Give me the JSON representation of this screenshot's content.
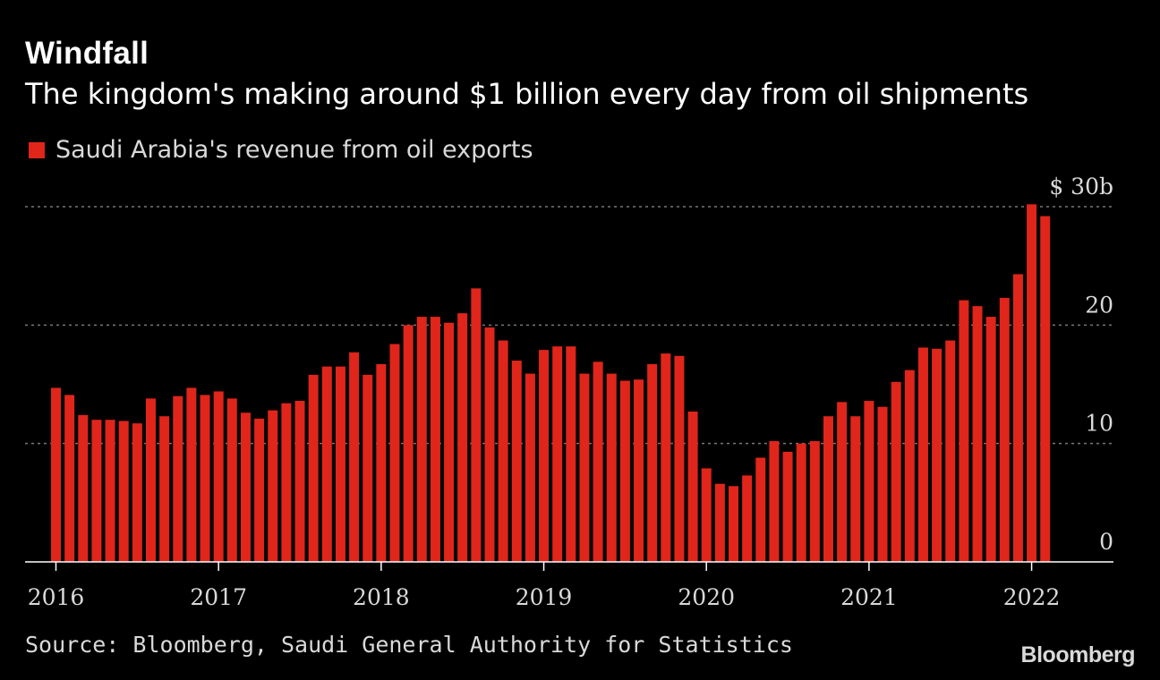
{
  "header": {
    "title": "Windfall",
    "subtitle": "The kingdom's making around $1 billion every day from oil shipments"
  },
  "legend": {
    "label": "Saudi Arabia's revenue from oil exports"
  },
  "footer": {
    "source": "Source: Bloomberg, Saudi General Authority for Statistics",
    "logo": "Bloomberg"
  },
  "colors": {
    "bar": "#e0251b",
    "background": "#000000",
    "grid": "#777777",
    "text": "#d9d9d9"
  },
  "chart_data": {
    "type": "bar",
    "title": "Windfall",
    "subtitle": "The kingdom's making around $1 billion every day from oil shipments",
    "series": [
      {
        "name": "Saudi Arabia's revenue from oil exports",
        "start": "2016-01",
        "values": [
          14.7,
          14.1,
          12.4,
          12.0,
          12.0,
          11.9,
          11.7,
          13.8,
          12.3,
          14.0,
          14.7,
          14.1,
          14.4,
          13.8,
          12.6,
          12.1,
          12.8,
          13.4,
          13.6,
          15.8,
          16.5,
          16.5,
          17.7,
          15.8,
          16.7,
          18.4,
          20.0,
          20.7,
          20.7,
          20.2,
          21.0,
          23.1,
          19.8,
          18.7,
          17.0,
          15.9,
          17.9,
          18.2,
          18.2,
          15.9,
          16.9,
          15.9,
          15.3,
          15.4,
          16.7,
          17.6,
          17.4,
          12.7,
          7.9,
          6.6,
          6.4,
          7.3,
          8.8,
          10.2,
          9.3,
          10.0,
          10.2,
          12.3,
          13.5,
          12.3,
          13.6,
          13.1,
          15.2,
          16.2,
          18.1,
          18.0,
          18.7,
          22.1,
          21.6,
          20.7,
          22.3,
          24.3,
          30.2,
          29.2
        ]
      }
    ],
    "x_ticks": [
      "2016",
      "2017",
      "2018",
      "2019",
      "2020",
      "2021",
      "2022"
    ],
    "y_ticks": [
      {
        "value": 0,
        "label": "0"
      },
      {
        "value": 10,
        "label": "10"
      },
      {
        "value": 20,
        "label": "20"
      },
      {
        "value": 30,
        "label": "$ 30b"
      }
    ],
    "ylim": [
      0,
      30
    ],
    "grid": true,
    "legend_position": "top-left"
  }
}
